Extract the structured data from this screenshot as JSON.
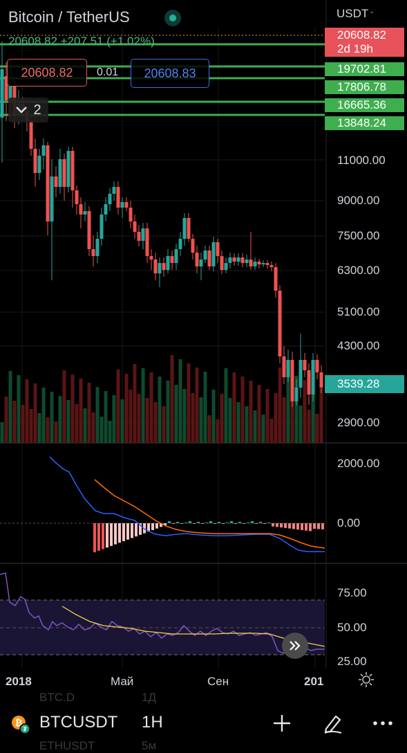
{
  "header": {
    "pair_title": "Bitcoin / TetherUS",
    "currency": "USDT",
    "price_line": "20608.82 +207.51 (+1.02%)",
    "bid": "20608.82",
    "spread": "0.01",
    "ask": "20608.83",
    "indicators_collapse_count": "2"
  },
  "price_axis": {
    "labels": [
      "11000.00",
      "9000.00",
      "7500.00",
      "6300.00",
      "5100.00",
      "4300.00",
      "2900.00"
    ],
    "current_price_tag": {
      "price": "20608.82",
      "countdown": "2d 19h",
      "color": "#e8525a"
    },
    "alert_tags": [
      "19702.81",
      "17806.78",
      "16665.36",
      "13848.24"
    ],
    "last_visible_tag": "3539.28"
  },
  "macd_axis": {
    "labels": [
      "2000.00",
      "0.00"
    ]
  },
  "rsi_axis": {
    "labels": [
      "75.00",
      "50.00",
      "25.00"
    ]
  },
  "time_axis": {
    "labels": [
      "2018",
      "Май",
      "Сен",
      "201"
    ]
  },
  "colors": {
    "up": "#26a69a",
    "down": "#ef5350",
    "alert_line": "#3fae4f",
    "macd_line": "#2962ff",
    "signal_line": "#ff6d00",
    "rsi_line": "#7e57c2",
    "rsi_ma": "#f5d547"
  },
  "bottom_bar": {
    "ghost_rows": [
      "BTC.D",
      "1Д",
      "ETHUSDT",
      "5м"
    ],
    "symbol": "BTCUSDT",
    "interval": "1H",
    "icons": [
      "bitcoin-coin-icon",
      "plus-icon",
      "pen-icon",
      "more-icon"
    ]
  },
  "scroll_to_latest_icon": "double-chevron-right-icon"
}
